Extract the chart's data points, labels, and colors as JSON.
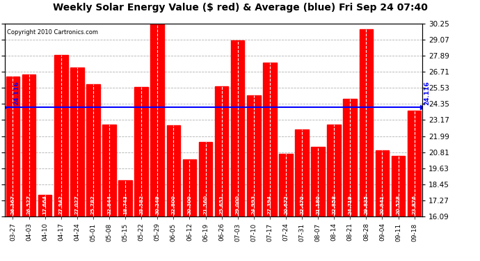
{
  "title": "Weekly Solar Energy Value ($ red) & Average (blue) Fri Sep 24 07:40",
  "copyright": "Copyright 2010 Cartronics.com",
  "categories": [
    "03-27",
    "04-03",
    "04-10",
    "04-17",
    "04-24",
    "05-01",
    "05-08",
    "05-15",
    "05-22",
    "05-29",
    "06-05",
    "06-12",
    "06-19",
    "06-26",
    "07-03",
    "07-10",
    "07-17",
    "07-24",
    "07-31",
    "08-07",
    "08-14",
    "08-21",
    "08-28",
    "09-04",
    "09-11",
    "09-18"
  ],
  "values": [
    26.367,
    26.527,
    17.664,
    27.942,
    27.027,
    25.782,
    22.844,
    18.743,
    25.582,
    30.249,
    22.8,
    20.3,
    21.56,
    25.651,
    29.0,
    24.993,
    27.394,
    20.672,
    22.47,
    21.18,
    22.858,
    24.719,
    29.835,
    20.941,
    20.528,
    23.876
  ],
  "average": 24.116,
  "bar_color": "#ff0000",
  "avg_line_color": "#0000ff",
  "background_color": "#ffffff",
  "plot_bg_color": "#ffffff",
  "grid_color": "#b0b0b0",
  "ylim_min": 16.09,
  "ylim_max": 30.25,
  "yticks": [
    16.09,
    17.27,
    18.45,
    19.63,
    20.81,
    21.99,
    23.17,
    24.35,
    25.53,
    26.71,
    27.89,
    29.07,
    30.25
  ],
  "title_fontsize": 10,
  "avg_label": "24.116",
  "bar_width": 0.85
}
